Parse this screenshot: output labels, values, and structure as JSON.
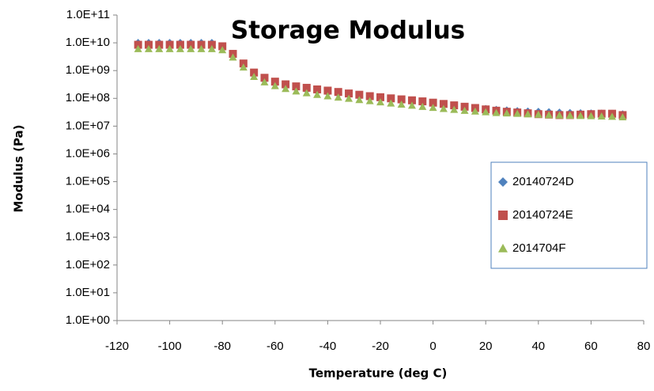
{
  "chart_data": {
    "type": "scatter",
    "title": "Storage Modulus",
    "x_label": "Temperature (deg C)",
    "y_label": "Modulus (Pa)",
    "y_scale": "log",
    "grid": false,
    "legend": "right",
    "xlim": [
      -120,
      80
    ],
    "xticks": [
      -120,
      -100,
      -80,
      -60,
      -40,
      -20,
      0,
      20,
      40,
      60,
      80
    ],
    "ylim": [
      1,
      100000000000.0
    ],
    "yticks": [
      {
        "value": 1,
        "label": "1.0E+00"
      },
      {
        "value": 10,
        "label": "1.0E+01"
      },
      {
        "value": 100,
        "label": "1.0E+02"
      },
      {
        "value": 1000,
        "label": "1.0E+03"
      },
      {
        "value": 10000,
        "label": "1.0E+04"
      },
      {
        "value": 100000,
        "label": "1.0E+05"
      },
      {
        "value": 1000000,
        "label": "1.0E+06"
      },
      {
        "value": 10000000,
        "label": "1.0E+07"
      },
      {
        "value": 100000000,
        "label": "1.0E+08"
      },
      {
        "value": 1000000000,
        "label": "1.0E+09"
      },
      {
        "value": 10000000000,
        "label": "1.0E+10"
      },
      {
        "value": 100000000000,
        "label": "1.0E+11"
      }
    ],
    "x": [
      -112,
      -108,
      -104,
      -100,
      -96,
      -92,
      -88,
      -84,
      -80,
      -76,
      -72,
      -68,
      -64,
      -60,
      -56,
      -52,
      -48,
      -44,
      -40,
      -36,
      -32,
      -28,
      -24,
      -20,
      -16,
      -12,
      -8,
      -4,
      0,
      4,
      8,
      12,
      16,
      20,
      24,
      28,
      32,
      36,
      40,
      44,
      48,
      52,
      56,
      60,
      64,
      68,
      72
    ],
    "series": [
      {
        "name": "20140724D",
        "color": "#4f81bd",
        "marker": "diamond",
        "values": [
          10000000000.0,
          10000000000.0,
          10000000000.0,
          10000000000.0,
          10000000000.0,
          10000000000.0,
          10000000000.0,
          10000000000.0,
          7000000000.0,
          3500000000.0,
          1500000000.0,
          700000000.0,
          450000000.0,
          330000000.0,
          270000000.0,
          230000000.0,
          200000000.0,
          180000000.0,
          160000000.0,
          145000000.0,
          130000000.0,
          115000000.0,
          105000000.0,
          95000000.0,
          87000000.0,
          80000000.0,
          73000000.0,
          67000000.0,
          61000000.0,
          56000000.0,
          52000000.0,
          48000000.0,
          45000000.0,
          42000000.0,
          39000000.0,
          37000000.0,
          35000000.0,
          34000000.0,
          33000000.0,
          32000000.0,
          31000000.0,
          30000000.0,
          29500000.0,
          29000000.0,
          28500000.0,
          28000000.0,
          27000000.0
        ]
      },
      {
        "name": "20140724E",
        "color": "#c0504d",
        "marker": "square",
        "values": [
          8500000000.0,
          8500000000.0,
          8500000000.0,
          8500000000.0,
          8500000000.0,
          8500000000.0,
          8500000000.0,
          8500000000.0,
          7500000000.0,
          4000000000.0,
          1800000000.0,
          850000000.0,
          550000000.0,
          400000000.0,
          320000000.0,
          270000000.0,
          240000000.0,
          210000000.0,
          190000000.0,
          170000000.0,
          150000000.0,
          135000000.0,
          120000000.0,
          110000000.0,
          100000000.0,
          92000000.0,
          85000000.0,
          78000000.0,
          70000000.0,
          63000000.0,
          56000000.0,
          50000000.0,
          45000000.0,
          40000000.0,
          36000000.0,
          33000000.0,
          31000000.0,
          29000000.0,
          27000000.0,
          26000000.0,
          25000000.0,
          25000000.0,
          26000000.0,
          27000000.0,
          28000000.0,
          28000000.0,
          25000000.0
        ]
      },
      {
        "name": "2014704F",
        "color": "#9bbb59",
        "marker": "triangle",
        "values": [
          6000000000.0,
          6000000000.0,
          6000000000.0,
          6000000000.0,
          6000000000.0,
          6000000000.0,
          6000000000.0,
          6000000000.0,
          5500000000.0,
          3000000000.0,
          1300000000.0,
          600000000.0,
          380000000.0,
          280000000.0,
          220000000.0,
          180000000.0,
          155000000.0,
          135000000.0,
          120000000.0,
          108000000.0,
          98000000.0,
          88000000.0,
          80000000.0,
          73000000.0,
          66000000.0,
          60000000.0,
          55000000.0,
          50000000.0,
          46000000.0,
          42000000.0,
          39000000.0,
          36000000.0,
          34000000.0,
          32000000.0,
          30000000.0,
          29000000.0,
          28000000.0,
          27000000.0,
          26000000.0,
          25000000.0,
          24500000.0,
          24000000.0,
          23500000.0,
          23000000.0,
          22500000.0,
          22000000.0,
          21000000.0
        ]
      }
    ]
  }
}
